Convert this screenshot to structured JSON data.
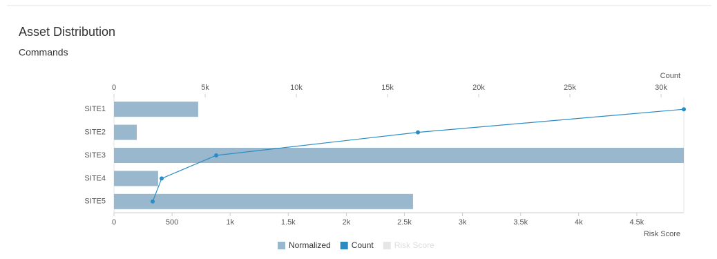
{
  "chart_data": {
    "type": "bar",
    "orientation": "horizontal",
    "title": "Asset Distribution",
    "subtitle": "Commands",
    "categories": [
      "SITE1",
      "SITE2",
      "SITE3",
      "SITE4",
      "SITE5"
    ],
    "series": [
      {
        "name": "Normalized",
        "color": "#9ab8cd",
        "values": [
          725,
          196,
          4905,
          380,
          2574
        ]
      },
      {
        "name": "Count",
        "color": "#2b8cc4",
        "type": "line",
        "axis": "x2",
        "values": [
          31250,
          16667,
          5606,
          2614,
          2121
        ]
      },
      {
        "name": "Risk Score",
        "color": "#e6e6e6",
        "visible": false
      }
    ],
    "xlabel": "Risk Score",
    "x2label": "Count",
    "xlim": [
      0,
      4905
    ],
    "xticks": [
      0,
      500,
      {
        "value": 1000,
        "label": "1k"
      },
      {
        "value": 1500,
        "label": "1.5k"
      },
      {
        "value": 2000,
        "label": "2k"
      },
      {
        "value": 2500,
        "label": "2.5k"
      },
      {
        "value": 3000,
        "label": "3k"
      },
      {
        "value": 3500,
        "label": "3.5k"
      },
      {
        "value": 4000,
        "label": "4k"
      },
      {
        "value": 4500,
        "label": "4.5k"
      }
    ],
    "x2lim": [
      0,
      31250
    ],
    "x2ticks": [
      0,
      {
        "value": 5000,
        "label": "5k"
      },
      {
        "value": 10000,
        "label": "10k"
      },
      {
        "value": 15000,
        "label": "15k"
      },
      {
        "value": 20000,
        "label": "20k"
      },
      {
        "value": 25000,
        "label": "25k"
      },
      {
        "value": 30000,
        "label": "30k"
      }
    ]
  }
}
